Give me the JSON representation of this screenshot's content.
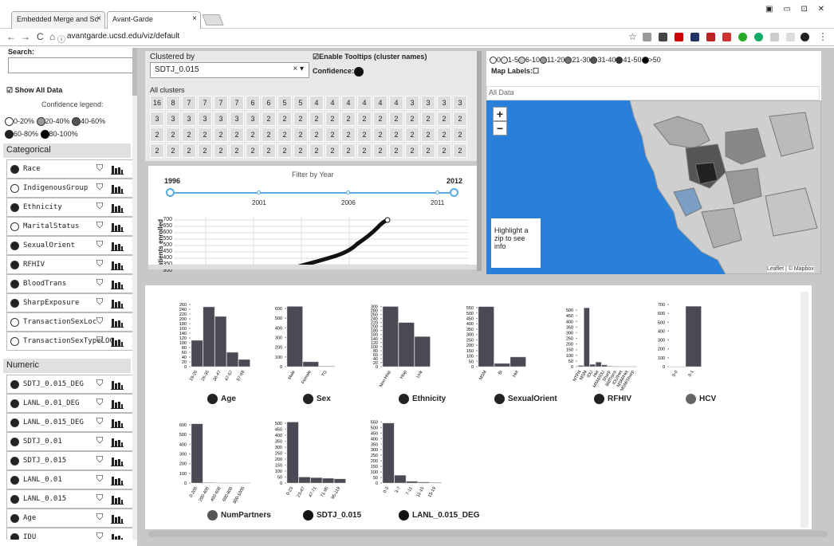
{
  "browser": {
    "tabs": [
      "Embedded Merge and Sc",
      "Avant-Garde"
    ],
    "url": "avantgarde.ucsd.edu/viz/default"
  },
  "sidebar": {
    "search_label": "Search:",
    "show_all": "Show All Data",
    "confidence_legend": "Confidence legend:",
    "legend": [
      "0-20%",
      "20-40%",
      "40-60%",
      "60-80%",
      "80-100%"
    ],
    "categorical_title": "Categorical",
    "categorical": [
      "Race",
      "IndigenousGroup",
      "Ethnicity",
      "MaritalStatus",
      "SexualOrient",
      "RFHIV",
      "BloodTrans",
      "SharpExposure",
      "TransactionSexLoc",
      "TransactionSexTypeLOC"
    ],
    "numeric_title": "Numeric",
    "numeric": [
      "SDTJ_0.015_DEG",
      "LANL_0.01_DEG",
      "LANL_0.015_DEG",
      "SDTJ_0.01",
      "SDTJ_0.015",
      "LANL_0.01",
      "LANL_0.015",
      "Age",
      "IDU"
    ]
  },
  "cluster": {
    "clustered_by": "Clustered by",
    "select_value": "SDTJ_0.015",
    "tooltips": "Enable Tooltips (cluster names)",
    "confidence": "Confidence:",
    "all_clusters": "All clusters",
    "rows": [
      [
        "16",
        "8",
        "7",
        "7",
        "7",
        "7",
        "6",
        "6",
        "5",
        "5",
        "4",
        "4",
        "4",
        "4",
        "4",
        "4",
        "3",
        "3",
        "3",
        "3"
      ],
      [
        "3",
        "3",
        "3",
        "3",
        "3",
        "3",
        "3",
        "2",
        "2",
        "2",
        "2",
        "2",
        "2",
        "2",
        "2",
        "2",
        "2",
        "2",
        "2",
        "2"
      ],
      [
        "2",
        "2",
        "2",
        "2",
        "2",
        "2",
        "2",
        "2",
        "2",
        "2",
        "2",
        "2",
        "2",
        "2",
        "2",
        "2",
        "2",
        "2",
        "2",
        "2"
      ],
      [
        "2",
        "2",
        "2",
        "2",
        "2",
        "2",
        "2",
        "2",
        "2",
        "2",
        "2",
        "2",
        "2",
        "2",
        "2",
        "2",
        "2",
        "2",
        "2",
        "2"
      ]
    ]
  },
  "year": {
    "title": "Filter by Year",
    "start": "1996",
    "end": "2012",
    "ticks": [
      "2001",
      "2006",
      "2011"
    ],
    "ylabel": "atients enrolled",
    "yticks": [
      "700",
      "650",
      "600",
      "550",
      "500",
      "450",
      "400",
      "350",
      "300"
    ]
  },
  "map": {
    "legend": [
      "0",
      "1-5",
      "6-10",
      "11-20",
      "21-30",
      "31-40",
      "41-50",
      ">50"
    ],
    "labels": "Map Labels:",
    "alldata": "All Data",
    "zoom_in": "+",
    "zoom_out": "−",
    "highlight": "Highlight a zip to see info",
    "attribution": "Leaflet | © Mapbox"
  },
  "chart_data": [
    {
      "type": "bar",
      "title": "Age",
      "categories": [
        "18-26",
        "26-35",
        "36-47",
        "47-57",
        "57-68"
      ],
      "values": [
        110,
        250,
        210,
        60,
        30
      ],
      "ylim": [
        0,
        260
      ],
      "yticks": [
        "260",
        "240",
        "220",
        "200",
        "180",
        "160",
        "140",
        "120",
        "100",
        "80",
        "60",
        "40",
        "20",
        "0"
      ]
    },
    {
      "type": "bar",
      "title": "Sex",
      "categories": [
        "Male",
        "Female",
        "TG"
      ],
      "values": [
        620,
        50,
        5
      ],
      "ylim": [
        0,
        640
      ],
      "yticks": [
        "600",
        "500",
        "400",
        "300",
        "200",
        "100",
        "0"
      ]
    },
    {
      "type": "bar",
      "title": "Ethnicity",
      "categories": [
        "Non-Hisp",
        "Hisp",
        "Unk"
      ],
      "values": [
        300,
        220,
        150
      ],
      "ylim": [
        0,
        310
      ],
      "yticks": [
        "300",
        "280",
        "260",
        "240",
        "220",
        "200",
        "180",
        "160",
        "140",
        "120",
        "100",
        "80",
        "60",
        "40",
        "20",
        "0"
      ]
    },
    {
      "type": "bar",
      "title": "SexualOrient",
      "categories": [
        "MSM",
        "Bi",
        "Het"
      ],
      "values": [
        560,
        30,
        90
      ],
      "ylim": [
        0,
        580
      ],
      "yticks": [
        "550",
        "500",
        "450",
        "400",
        "350",
        "300",
        "250",
        "200",
        "150",
        "100",
        "50",
        "0"
      ]
    },
    {
      "type": "bar",
      "title": "RFHIV",
      "categories": [
        "NTFN",
        "MSM",
        "IDU",
        "Het",
        "MSM/IDU",
        "Sharp",
        "BldTrans",
        "IDU/Het",
        "MSM/Het",
        "MSM/Sharp"
      ],
      "values": [
        10,
        520,
        20,
        40,
        15,
        5,
        3,
        2,
        2,
        1
      ],
      "ylim": [
        0,
        550
      ],
      "yticks": [
        "500",
        "450",
        "400",
        "350",
        "300",
        "250",
        "200",
        "150",
        "100",
        "50",
        "0"
      ]
    },
    {
      "type": "bar",
      "title": "HCV",
      "categories": [
        "0-0",
        "0-1"
      ],
      "values": [
        0,
        680
      ],
      "ylim": [
        0,
        700
      ],
      "yticks": [
        "700",
        "600",
        "500",
        "400",
        "300",
        "200",
        "100",
        "0"
      ]
    },
    {
      "type": "bar",
      "title": "NumPartners",
      "categories": [
        "0-200",
        "200-400",
        "400-600",
        "600-800",
        "800-1000"
      ],
      "values": [
        610,
        5,
        2,
        1,
        1
      ],
      "ylim": [
        0,
        640
      ],
      "yticks": [
        "600",
        "500",
        "400",
        "300",
        "200",
        "100",
        "0"
      ]
    },
    {
      "type": "bar",
      "title": "SDTJ_0.015",
      "categories": [
        "0-23",
        "23-47",
        "47-71",
        "71-95",
        "95-119"
      ],
      "values": [
        510,
        50,
        45,
        40,
        35
      ],
      "ylim": [
        0,
        520
      ],
      "yticks": [
        "500",
        "450",
        "400",
        "350",
        "300",
        "250",
        "200",
        "150",
        "100",
        "50",
        "0"
      ]
    },
    {
      "type": "bar",
      "title": "LANL_0.015_DEG",
      "categories": [
        "0-3",
        "3-7",
        "7-11",
        "11-15",
        "15-19"
      ],
      "values": [
        540,
        70,
        15,
        8,
        5
      ],
      "ylim": [
        0,
        560
      ],
      "yticks": [
        "550",
        "500",
        "450",
        "400",
        "350",
        "300",
        "250",
        "200",
        "150",
        "100",
        "50",
        "0"
      ]
    }
  ],
  "colors": {
    "bar": "#4a4a55",
    "water": "#2a7fd8",
    "land": "#cfcfcf"
  }
}
